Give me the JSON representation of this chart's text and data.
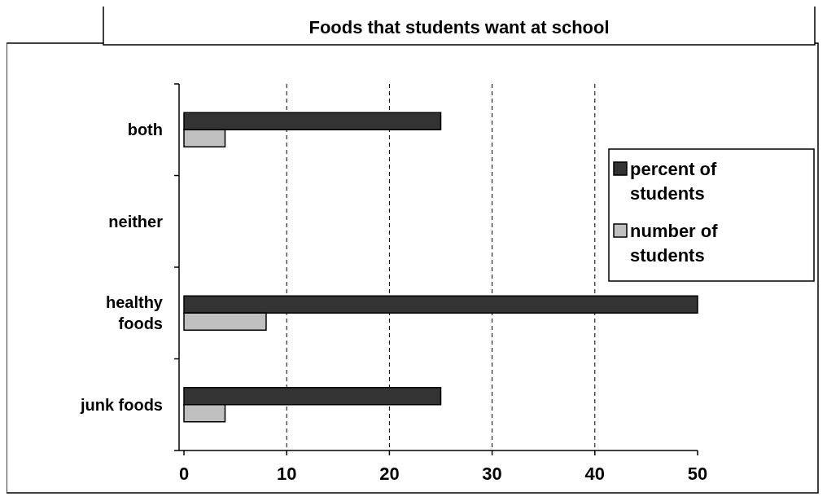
{
  "chart_data": {
    "type": "bar",
    "orientation": "horizontal",
    "title": "Foods that students want at school",
    "categories": [
      "both",
      "neither",
      "healthy foods",
      "junk foods"
    ],
    "series": [
      {
        "name": "percent of students",
        "color": "#333333",
        "values": [
          25,
          0,
          50,
          25
        ]
      },
      {
        "name": "number of students",
        "color": "#c0c0c0",
        "values": [
          4,
          0,
          8,
          4
        ]
      }
    ],
    "xlim": [
      0,
      50
    ],
    "xticks": [
      0,
      10,
      20,
      30,
      40,
      50
    ],
    "grid": "x",
    "legend": "right"
  }
}
